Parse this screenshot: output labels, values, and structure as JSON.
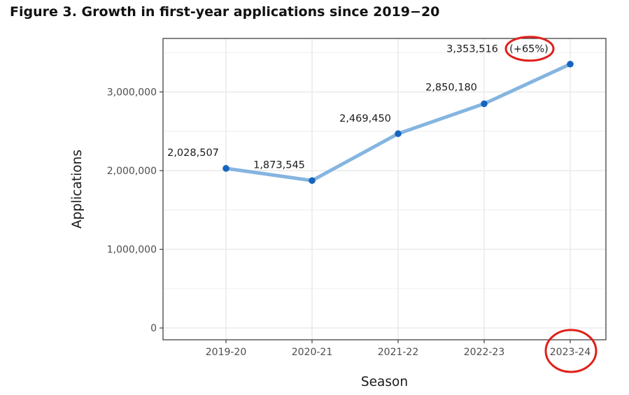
{
  "figure_title": "Figure 3. Growth in first-year applications since 2019−20",
  "chart_data": {
    "type": "line",
    "x": [
      "2019-20",
      "2020-21",
      "2021-22",
      "2022-23",
      "2023-24"
    ],
    "series": [
      {
        "values": [
          2028507,
          1873545,
          2469450,
          2850180,
          3353516
        ]
      }
    ],
    "data_labels": [
      "2,028,507",
      "1,873,545",
      "2,469,450",
      "2,850,180",
      "3,353,516"
    ],
    "annotation": "(+65%)",
    "xlabel": "Season",
    "ylabel": "Applications",
    "yticks": [
      0,
      1000000,
      2000000,
      3000000
    ],
    "ytick_labels": [
      "0",
      "1,000,000",
      "2,000,000",
      "3,000,000"
    ],
    "ylim": [
      -150000,
      3680000
    ],
    "grid": true,
    "highlighted": [
      "2023-24",
      "(+65%)"
    ],
    "colors": {
      "line": "#85b5e0",
      "point": "#1565c0",
      "highlight": "#e0201a",
      "grid": "#ebebeb",
      "panel_border": "#333333"
    }
  }
}
